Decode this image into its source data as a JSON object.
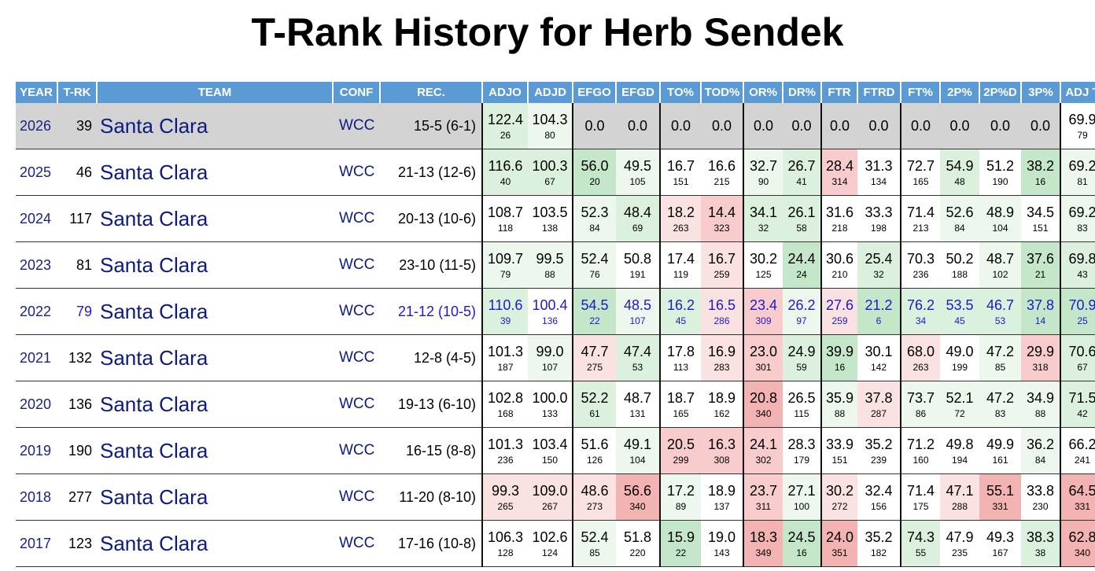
{
  "title": "T-Rank History for Herb Sendek",
  "columns": [
    "YEAR",
    "T-RK",
    "TEAM",
    "CONF",
    "REC.",
    "ADJO",
    "ADJD",
    "EFGO",
    "EFGD",
    "TO%",
    "TOD%",
    "OR%",
    "DR%",
    "FTR",
    "FTRD",
    "FT%",
    "2P%",
    "2P%D",
    "3P%",
    "ADJ T"
  ],
  "colors": {
    "header_bg": "#5b9bd5",
    "current_row_bg": "#d3d3d3",
    "team_link": "#0d1a80",
    "highlight_text": "#2018c8"
  },
  "rows": [
    {
      "year": "2026",
      "trk": "39",
      "team": "Santa Clara",
      "conf": "WCC",
      "rec": "15-5 (6-1)",
      "current": true,
      "stats": [
        [
          "122.4",
          "26"
        ],
        [
          "104.3",
          "80"
        ],
        [
          "0.0",
          ""
        ],
        [
          "0.0",
          ""
        ],
        [
          "0.0",
          ""
        ],
        [
          "0.0",
          ""
        ],
        [
          "0.0",
          ""
        ],
        [
          "0.0",
          ""
        ],
        [
          "0.0",
          ""
        ],
        [
          "0.0",
          ""
        ],
        [
          "0.0",
          ""
        ],
        [
          "0.0",
          ""
        ],
        [
          "0.0",
          ""
        ],
        [
          "0.0",
          ""
        ],
        [
          "69.9",
          "79"
        ]
      ]
    },
    {
      "year": "2025",
      "trk": "46",
      "team": "Santa Clara",
      "conf": "WCC",
      "rec": "21-13 (12-6)",
      "stats": [
        [
          "116.6",
          "40"
        ],
        [
          "100.3",
          "67"
        ],
        [
          "56.0",
          "20"
        ],
        [
          "49.5",
          "105"
        ],
        [
          "16.7",
          "151"
        ],
        [
          "16.6",
          "215"
        ],
        [
          "32.7",
          "90"
        ],
        [
          "26.7",
          "41"
        ],
        [
          "28.4",
          "314"
        ],
        [
          "31.3",
          "134"
        ],
        [
          "72.7",
          "165"
        ],
        [
          "54.9",
          "48"
        ],
        [
          "51.2",
          "190"
        ],
        [
          "38.2",
          "16"
        ],
        [
          "69.2",
          "81"
        ]
      ]
    },
    {
      "year": "2024",
      "trk": "117",
      "team": "Santa Clara",
      "conf": "WCC",
      "rec": "20-13 (10-6)",
      "stats": [
        [
          "108.7",
          "118"
        ],
        [
          "103.5",
          "138"
        ],
        [
          "52.3",
          "84"
        ],
        [
          "48.4",
          "69"
        ],
        [
          "18.2",
          "263"
        ],
        [
          "14.4",
          "323"
        ],
        [
          "34.1",
          "32"
        ],
        [
          "26.1",
          "58"
        ],
        [
          "31.6",
          "218"
        ],
        [
          "33.3",
          "198"
        ],
        [
          "71.4",
          "213"
        ],
        [
          "52.6",
          "84"
        ],
        [
          "48.9",
          "104"
        ],
        [
          "34.5",
          "151"
        ],
        [
          "69.2",
          "83"
        ]
      ]
    },
    {
      "year": "2023",
      "trk": "81",
      "team": "Santa Clara",
      "conf": "WCC",
      "rec": "23-10 (11-5)",
      "stats": [
        [
          "109.7",
          "79"
        ],
        [
          "99.5",
          "88"
        ],
        [
          "52.4",
          "76"
        ],
        [
          "50.8",
          "191"
        ],
        [
          "17.4",
          "119"
        ],
        [
          "16.7",
          "259"
        ],
        [
          "30.2",
          "125"
        ],
        [
          "24.4",
          "24"
        ],
        [
          "30.6",
          "210"
        ],
        [
          "25.4",
          "32"
        ],
        [
          "70.3",
          "236"
        ],
        [
          "50.2",
          "188"
        ],
        [
          "48.7",
          "102"
        ],
        [
          "37.6",
          "21"
        ],
        [
          "69.8",
          "43"
        ]
      ]
    },
    {
      "year": "2022",
      "trk": "79",
      "team": "Santa Clara",
      "conf": "WCC",
      "rec": "21-12 (10-5)",
      "highlight": true,
      "stats": [
        [
          "110.6",
          "39"
        ],
        [
          "100.4",
          "136"
        ],
        [
          "54.5",
          "22"
        ],
        [
          "48.5",
          "107"
        ],
        [
          "16.2",
          "45"
        ],
        [
          "16.5",
          "286"
        ],
        [
          "23.4",
          "309"
        ],
        [
          "26.2",
          "97"
        ],
        [
          "27.6",
          "259"
        ],
        [
          "21.2",
          "6"
        ],
        [
          "76.2",
          "34"
        ],
        [
          "53.5",
          "45"
        ],
        [
          "46.7",
          "53"
        ],
        [
          "37.8",
          "14"
        ],
        [
          "70.9",
          "25"
        ]
      ]
    },
    {
      "year": "2021",
      "trk": "132",
      "team": "Santa Clara",
      "conf": "WCC",
      "rec": "12-8 (4-5)",
      "stats": [
        [
          "101.3",
          "187"
        ],
        [
          "99.0",
          "107"
        ],
        [
          "47.7",
          "275"
        ],
        [
          "47.4",
          "53"
        ],
        [
          "17.8",
          "113"
        ],
        [
          "16.9",
          "283"
        ],
        [
          "23.0",
          "301"
        ],
        [
          "24.9",
          "59"
        ],
        [
          "39.9",
          "16"
        ],
        [
          "30.1",
          "142"
        ],
        [
          "68.0",
          "263"
        ],
        [
          "49.0",
          "199"
        ],
        [
          "47.2",
          "85"
        ],
        [
          "29.9",
          "318"
        ],
        [
          "70.6",
          "67"
        ]
      ]
    },
    {
      "year": "2020",
      "trk": "136",
      "team": "Santa Clara",
      "conf": "WCC",
      "rec": "19-13 (6-10)",
      "stats": [
        [
          "102.8",
          "168"
        ],
        [
          "100.0",
          "133"
        ],
        [
          "52.2",
          "61"
        ],
        [
          "48.7",
          "131"
        ],
        [
          "18.7",
          "165"
        ],
        [
          "18.9",
          "162"
        ],
        [
          "20.8",
          "340"
        ],
        [
          "26.5",
          "115"
        ],
        [
          "35.9",
          "88"
        ],
        [
          "37.8",
          "287"
        ],
        [
          "73.7",
          "86"
        ],
        [
          "52.1",
          "72"
        ],
        [
          "47.2",
          "83"
        ],
        [
          "34.9",
          "88"
        ],
        [
          "71.5",
          "42"
        ]
      ]
    },
    {
      "year": "2019",
      "trk": "190",
      "team": "Santa Clara",
      "conf": "WCC",
      "rec": "16-15 (8-8)",
      "stats": [
        [
          "101.3",
          "236"
        ],
        [
          "103.4",
          "150"
        ],
        [
          "51.6",
          "126"
        ],
        [
          "49.1",
          "104"
        ],
        [
          "20.5",
          "299"
        ],
        [
          "16.3",
          "308"
        ],
        [
          "24.1",
          "302"
        ],
        [
          "28.3",
          "179"
        ],
        [
          "33.9",
          "151"
        ],
        [
          "35.2",
          "239"
        ],
        [
          "71.2",
          "160"
        ],
        [
          "49.8",
          "194"
        ],
        [
          "49.9",
          "161"
        ],
        [
          "36.2",
          "84"
        ],
        [
          "66.2",
          "241"
        ]
      ]
    },
    {
      "year": "2018",
      "trk": "277",
      "team": "Santa Clara",
      "conf": "WCC",
      "rec": "11-20 (8-10)",
      "stats": [
        [
          "99.3",
          "265"
        ],
        [
          "109.0",
          "267"
        ],
        [
          "48.6",
          "273"
        ],
        [
          "56.6",
          "340"
        ],
        [
          "17.2",
          "89"
        ],
        [
          "18.9",
          "137"
        ],
        [
          "23.7",
          "311"
        ],
        [
          "27.1",
          "100"
        ],
        [
          "30.2",
          "272"
        ],
        [
          "32.4",
          "156"
        ],
        [
          "71.4",
          "175"
        ],
        [
          "47.1",
          "288"
        ],
        [
          "55.1",
          "331"
        ],
        [
          "33.8",
          "230"
        ],
        [
          "64.5",
          "331"
        ]
      ]
    },
    {
      "year": "2017",
      "trk": "123",
      "team": "Santa Clara",
      "conf": "WCC",
      "rec": "17-16 (10-8)",
      "stats": [
        [
          "106.3",
          "128"
        ],
        [
          "102.6",
          "124"
        ],
        [
          "52.4",
          "85"
        ],
        [
          "51.8",
          "220"
        ],
        [
          "15.9",
          "22"
        ],
        [
          "19.0",
          "143"
        ],
        [
          "18.3",
          "349"
        ],
        [
          "24.5",
          "16"
        ],
        [
          "24.0",
          "351"
        ],
        [
          "35.2",
          "182"
        ],
        [
          "74.3",
          "55"
        ],
        [
          "47.9",
          "235"
        ],
        [
          "49.3",
          "167"
        ],
        [
          "38.3",
          "38"
        ],
        [
          "62.8",
          "340"
        ]
      ]
    }
  ]
}
